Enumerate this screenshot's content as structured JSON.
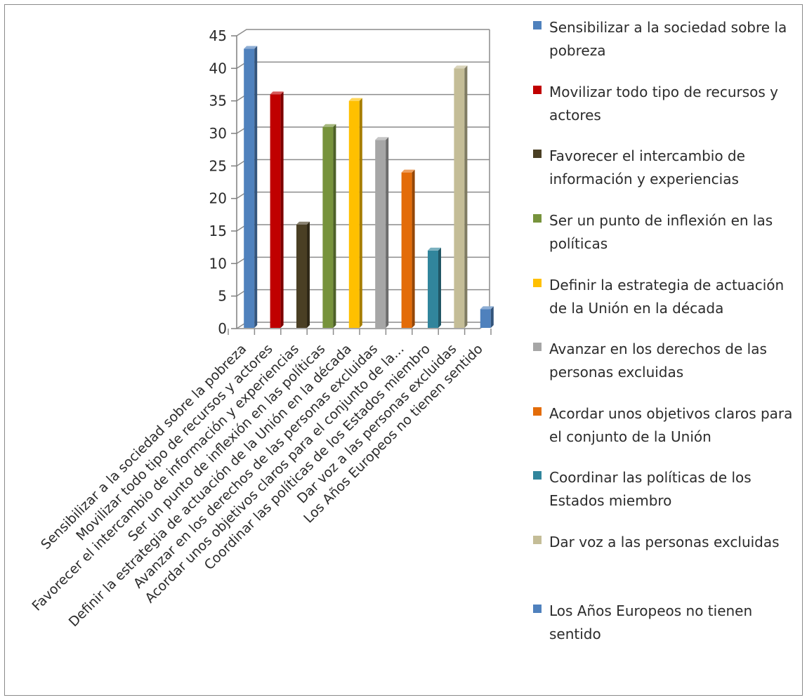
{
  "chart_data": {
    "type": "bar",
    "title": "",
    "xlabel": "",
    "ylabel": "",
    "ylim": [
      0,
      45
    ],
    "yticks": [
      0,
      5,
      10,
      15,
      20,
      25,
      30,
      35,
      40,
      45
    ],
    "grid": true,
    "legend_position": "right",
    "categories": [
      "Sensibilizar a la sociedad sobre la pobreza",
      "Movilizar todo tipo de recursos y actores",
      "Favorecer el intercambio de información y experiencias",
      "Ser un punto de inflexión en las políticas",
      "Definir la estrategia de actuación de la Unión en la década",
      "Avanzar en los derechos de las personas excluidas",
      "Acordar unos objetivos claros para el conjunto de la...",
      "Coordinar las políticas de los Estados miembro",
      "Dar voz a las personas excluidas",
      "Los Años Europeos no tienen sentido"
    ],
    "values": [
      43,
      36,
      16,
      31,
      35,
      29,
      24,
      12,
      40,
      3
    ],
    "colors": [
      "#4f81bd",
      "#c00000",
      "#4a3f24",
      "#77933c",
      "#ffc000",
      "#a6a6a6",
      "#e36c09",
      "#31859c",
      "#c4bd97",
      "#4f81bd"
    ],
    "legend": [
      "Sensibilizar a la sociedad sobre la pobreza",
      "Movilizar todo tipo de recursos y actores",
      "Favorecer el intercambio de información y experiencias",
      "Ser un punto de inflexión en las políticas",
      "Definir la estrategia de actuación de la Unión en la década",
      "Avanzar en los derechos de las personas excluidas",
      "Acordar unos objetivos claros para el conjunto de la Unión",
      "Coordinar las políticas de los Estados miembro",
      "Dar voz a las personas excluidas",
      "Los Años Europeos no tienen sentido"
    ]
  }
}
